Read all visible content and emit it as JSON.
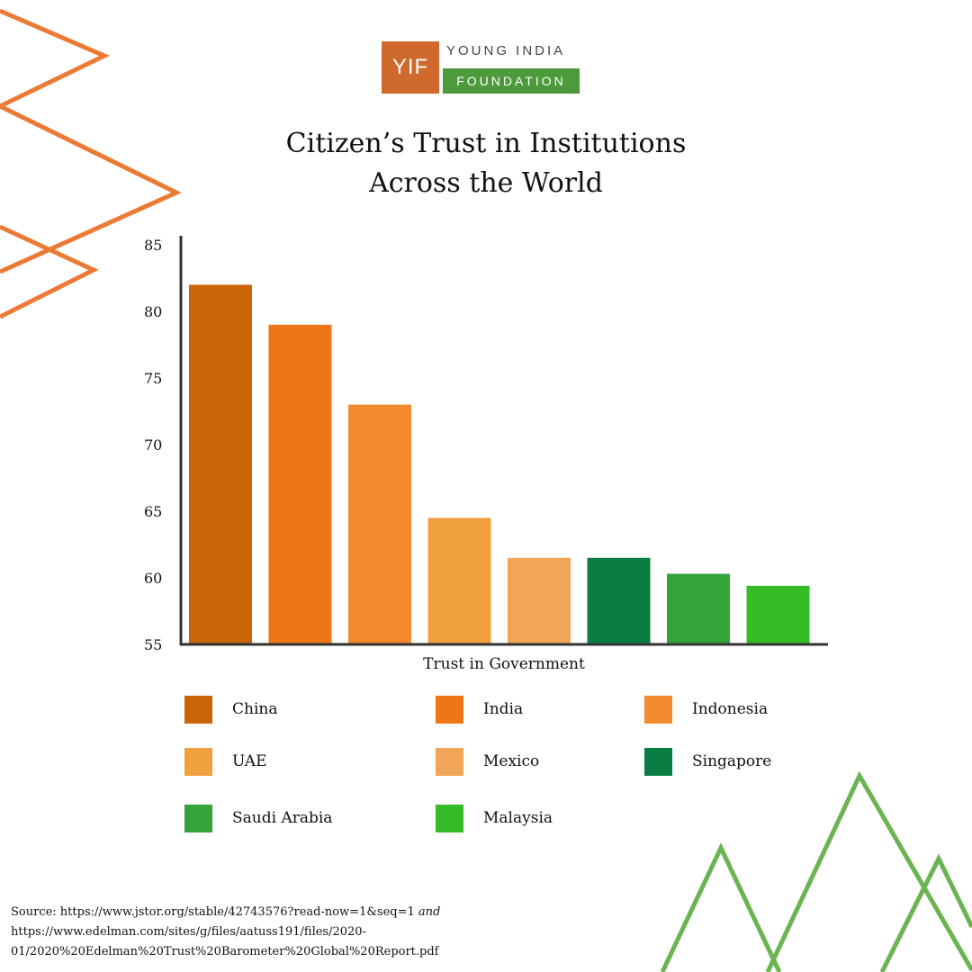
{
  "logo": {
    "mark": "YIF",
    "line1": "YOUNG INDIA",
    "line2": "FOUNDATION"
  },
  "colors": {
    "orange_deco": "#ec7a35",
    "green_deco": "#6ab451",
    "logo_orange": "#cf6a2c",
    "logo_green": "#4c9a3c"
  },
  "chart_data": {
    "type": "bar",
    "title_line1": "Citizen’s  Trust in Institutions",
    "title_line2": "Across the World",
    "xlabel": "Trust in Government",
    "ylabel": "",
    "ylim": [
      55,
      85
    ],
    "yticks": [
      55,
      60,
      65,
      70,
      75,
      80,
      85
    ],
    "grid": false,
    "legend_position": "bottom",
    "categories": [
      "China",
      "India",
      "Indonesia",
      "UAE",
      "Mexico",
      "Singapore",
      "Saudi Arabia",
      "Malaysia"
    ],
    "values": [
      82,
      79,
      73,
      64.5,
      61.5,
      61.5,
      60.3,
      59.4
    ],
    "colors": [
      "#c96607",
      "#ee7616",
      "#f48a2e",
      "#f1a03f",
      "#f0a557",
      "#0a7d42",
      "#33a33a",
      "#35bc25"
    ]
  },
  "source": {
    "prefix": "Source:  https://www.jstor.org/stable/42743576?read-now=1&seq=1",
    "connector": "and",
    "line2": "https://www.edelman.com/sites/g/files/aatuss191/files/2020-",
    "line3": "01/2020%20Edelman%20Trust%20Barometer%20Global%20Report.pdf"
  }
}
